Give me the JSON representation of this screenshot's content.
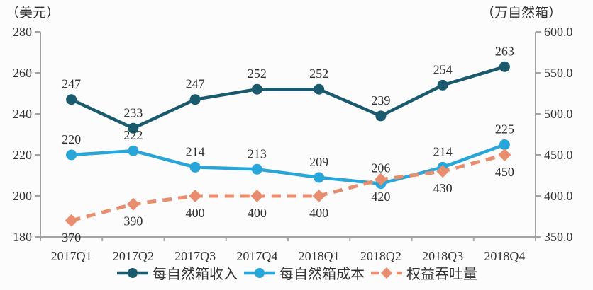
{
  "chart_data": {
    "type": "line",
    "categories": [
      "2017Q1",
      "2017Q2",
      "2017Q3",
      "2017Q4",
      "2018Q1",
      "2018Q2",
      "2018Q3",
      "2018Q4"
    ],
    "series": [
      {
        "name": "每自然箱收入",
        "axis": "left",
        "color": "#1a5a6e",
        "line_style": "solid",
        "marker": "circle",
        "label_side": "above",
        "values": [
          247,
          233,
          247,
          252,
          252,
          239,
          254,
          263
        ]
      },
      {
        "name": "每自然箱成本",
        "axis": "left",
        "color": "#29a6d9",
        "line_style": "solid",
        "marker": "circle",
        "label_side": "above",
        "values": [
          220,
          222,
          214,
          213,
          209,
          206,
          214,
          225
        ]
      },
      {
        "name": "权益吞吐量",
        "axis": "right",
        "color": "#e88e6e",
        "line_style": "dashed",
        "marker": "diamond",
        "label_side": "below",
        "values": [
          370,
          390,
          400,
          400,
          400,
          420,
          430,
          450
        ]
      }
    ],
    "left_axis": {
      "title": "（美元）",
      "min": 180,
      "max": 280,
      "step": 20,
      "tick_labels": [
        "280",
        "260",
        "240",
        "220",
        "200",
        "180"
      ]
    },
    "right_axis": {
      "title": "（万自然箱）",
      "min": 350,
      "max": 600,
      "step": 50,
      "tick_labels": [
        "600.0",
        "550.0",
        "500.0",
        "450.0",
        "400.0",
        "350.0"
      ]
    },
    "legend_position": "bottom",
    "grid": false,
    "colors": {
      "axis": "#a3a3a3",
      "tick_text": "#333333",
      "data_label": "#2f2f2f",
      "background": "#fcfcfc"
    }
  }
}
